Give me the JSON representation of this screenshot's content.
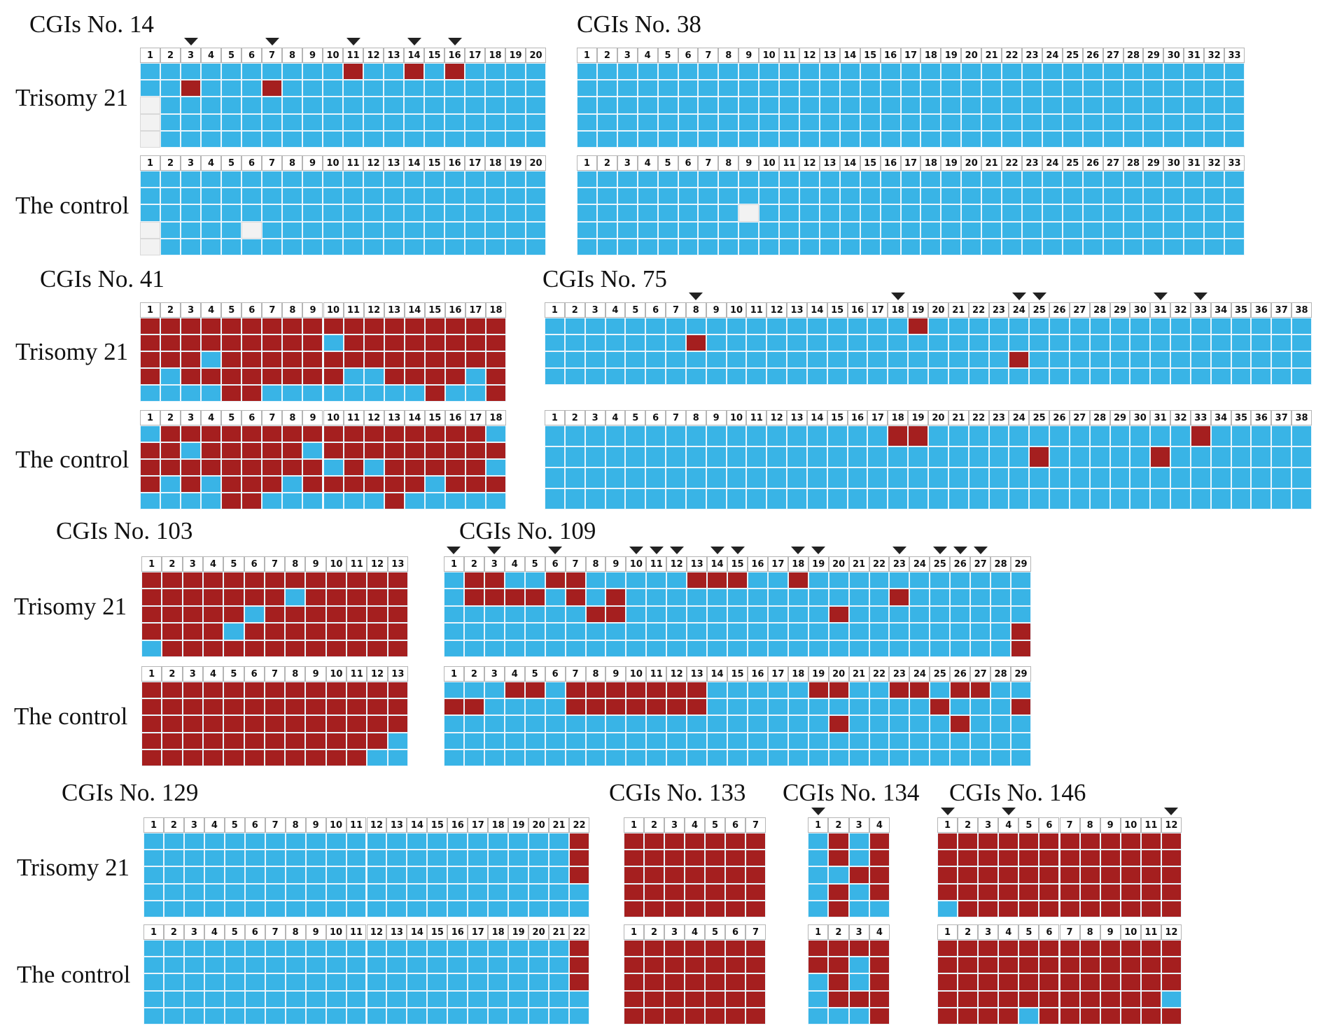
{
  "labels": {
    "trisomy": "Trisomy 21",
    "control": "The control"
  },
  "legend_colors": {
    "methylated": "#a51f1f",
    "unmethylated": "#39b4e6",
    "no_data": "#f2f2f2"
  },
  "panels": [
    {
      "id": "cgi14",
      "title": "CGIs No. 14",
      "sites": 20,
      "arrows": [
        3,
        7,
        11,
        14,
        16
      ],
      "trisomy": [
        "UUUUUUUUUUMUUMUMUUUU",
        "UUMUUUMUUUUUUUUUUUUU",
        "NUUUUUUUUUUUUUUUUUUU",
        "NUUUUUUUUUUUUUUUUUUU",
        "NUUUUUUUUUUUUUUUUUUU"
      ],
      "control": [
        "UUUUUUUUUUUUUUUUUUUU",
        "UUUUUUUUUUUUUUUUUUUU",
        "UUUUUUUUUUUUUUUUUUUU",
        "NUUUUNUUUUUUUUUUUUUU",
        "NUUUUUUUUUUUUUUUUUUU"
      ]
    },
    {
      "id": "cgi38",
      "title": "CGIs No. 38",
      "sites": 33,
      "arrows": [],
      "trisomy": [
        "UUUUUUUUUUUUUUUUUUUUUUUUUUUUUUUUU",
        "UUUUUUUUUUUUUUUUUUUUUUUUUUUUUUUUU",
        "UUUUUUUUUUUUUUUUUUUUUUUUUUUUUUUUU",
        "UUUUUUUUUUUUUUUUUUUUUUUUUUUUUUUUU",
        "UUUUUUUUUUUUUUUUUUUUUUUUUUUUUUUUU"
      ],
      "control": [
        "UUUUUUUUUUUUUUUUUUUUUUUUUUUUUUUUU",
        "UUUUUUUUUUUUUUUUUUUUUUUUUUUUUUUUU",
        "UUUUUUUUNUUUUUUUUUUUUUUUUUUUUUUUU",
        "UUUUUUUUUUUUUUUUUUUUUUUUUUUUUUUUU",
        "UUUUUUUUUUUUUUUUUUUUUUUUUUUUUUUUU"
      ]
    },
    {
      "id": "cgi41",
      "title": "CGIs No. 41",
      "sites": 18,
      "arrows": [],
      "trisomy": [
        "MMMMMMMMMMMMMMMMMM",
        "MMMMMMMMMUMMMMMMMM",
        "MMMUMMMMMMMMMMMMMM",
        "MUMMMMMMMMUUMMMMUM",
        "UUUUMMUUUUUUUUMUUM"
      ],
      "control": [
        "UMMMMMMMMMMMMMMMMU",
        "MMUMMMMMUMMMMMMMMM",
        "MMMMMMMMMUMUMMMMMU",
        "MUMUMMMUMMMMMMUMMM",
        "UUUUMMUUUUUUMUUUUU"
      ]
    },
    {
      "id": "cgi75",
      "title": "CGIs No. 75",
      "sites": 38,
      "arrows": [
        8,
        18,
        24,
        25,
        31,
        33
      ],
      "trisomy": [
        "UUUUUUUUUUUUUUUUUUMUUUUUUUUUUUUUUUUUUU",
        "UUUUUUUMUUUUUUUUUUUUUUUUUUUUUUUUUUUUUU",
        "UUUUUUUUUUUUUUUUUUUUUUUMUUUUUUUUUUUUUU",
        "UUUUUUUUUUUUUUUUUUUUUUUUUUUUUUUUUUUUUU"
      ],
      "control": [
        "UUUUUUUUUUUUUUUUUMMUUUUUUUUUUUUUMUUUUU",
        "UUUUUUUUUUUUUUUUUUUUUUUUMUUUUUMUUUUUUU",
        "UUUUUUUUUUUUUUUUUUUUUUUUUUUUUUUUUUUUUU",
        "UUUUUUUUUUUUUUUUUUUUUUUUUUUUUUUUUUUUUU"
      ]
    },
    {
      "id": "cgi103",
      "title": "CGIs No. 103",
      "sites": 13,
      "arrows": [],
      "trisomy": [
        "MMMMMMMMMMMMM",
        "MMMMMMMUMMMMM",
        "MMMMMUMMMMMMM",
        "MMMMUMMMMMMMM",
        "UMMMMMMMMMMMM"
      ],
      "control": [
        "MMMMMMMMMMMMM",
        "MMMMMMMMMMMMM",
        "MMMMMMMMMMMMM",
        "MMMMMMMMMMMMU",
        "MMMMMMMMMMMUU"
      ]
    },
    {
      "id": "cgi109",
      "title": "CGIs No. 109",
      "sites": 29,
      "arrows": [
        1,
        3,
        6,
        10,
        11,
        12,
        14,
        15,
        18,
        19,
        23,
        25,
        26,
        27
      ],
      "trisomy": [
        "UMMUUMMUUUUUMMMUUMUUUUUUUUUUU",
        "UMMMMUMUMUUUUUUUUUUUUUMUUUUUU",
        "UUUUUUUMMUUUUUUUUUUMUUUUUUUUU",
        "UUUUUUUUUUUUUUUUUUUUUUUUUUUUM",
        "UUUUUUUUUUUUUUUUUUUUUUUUUUUUM"
      ],
      "control": [
        "UUUMMUMMMMMMMUUUUUMMUUMMUMMUU",
        "MMUUUUMMMMMMMUUUUUUUUUUUMUUUM",
        "UUUUUUUUUUUUUUUUUUUMUUUUUMUUU",
        "UUUUUUUUUUUUUUUUUUUUUUUUUUUUU",
        "UUUUUUUUUUUUUUUUUUUUUUUUUUUUU"
      ]
    },
    {
      "id": "cgi129",
      "title": "CGIs No. 129",
      "sites": 22,
      "arrows": [],
      "trisomy": [
        "UUUUUUUUUUUUUUUUUUUUUM",
        "UUUUUUUUUUUUUUUUUUUUUM",
        "UUUUUUUUUUUUUUUUUUUUUM",
        "UUUUUUUUUUUUUUUUUUUUUU",
        "UUUUUUUUUUUUUUUUUUUUUU"
      ],
      "control": [
        "UUUUUUUUUUUUUUUUUUUUUM",
        "UUUUUUUUUUUUUUUUUUUUUM",
        "UUUUUUUUUUUUUUUUUUUUUM",
        "UUUUUUUUUUUUUUUUUUUUUU",
        "UUUUUUUUUUUUUUUUUUUUUU"
      ]
    },
    {
      "id": "cgi133",
      "title": "CGIs No. 133",
      "sites": 7,
      "arrows": [],
      "trisomy": [
        "MMMMMMM",
        "MMMMMMM",
        "MMMMMMM",
        "MMMMMMM",
        "MMMMMMM"
      ],
      "control": [
        "MMMMMMM",
        "MMMMMMM",
        "MMMMMMM",
        "MMMMMMM",
        "MMMMMMM"
      ]
    },
    {
      "id": "cgi134",
      "title": "CGIs No. 134",
      "sites": 4,
      "arrows": [
        1
      ],
      "trisomy": [
        "UMUM",
        "UMUM",
        "UUMM",
        "UMUM",
        "UMUU"
      ],
      "control": [
        "MMMM",
        "MMUM",
        "UMUM",
        "UMMM",
        "UUUM"
      ]
    },
    {
      "id": "cgi146",
      "title": "CGIs No. 146",
      "sites": 12,
      "arrows": [
        1,
        4,
        12
      ],
      "trisomy": [
        "MMMMMMMMMMMM",
        "MMMMMMMMMMMM",
        "MMMMMMMMMMMM",
        "MMMMMMMMMMMM",
        "UMMMMMMMMMMM"
      ],
      "control": [
        "MMMMMMMMMMMM",
        "MMMMMMMMMMMM",
        "MMMMMMMMMMMM",
        "MMMMMMMMMMMU",
        "MMMMUMMMMMMM"
      ]
    }
  ]
}
